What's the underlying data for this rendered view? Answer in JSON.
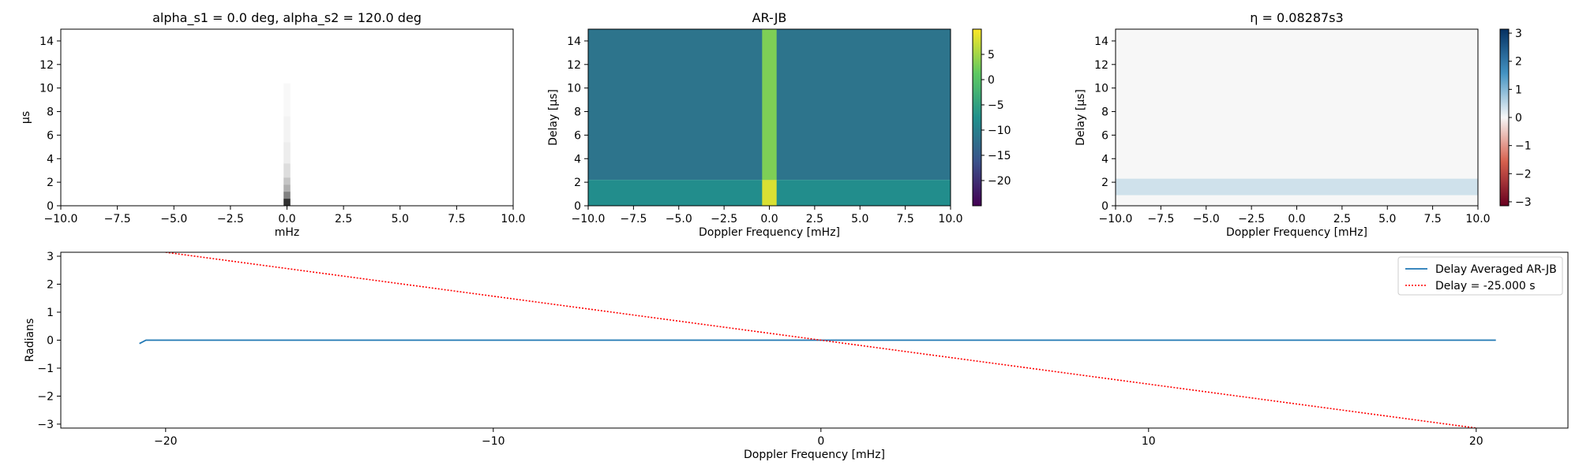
{
  "chart_data": [
    {
      "type": "heatmap",
      "title": "alpha_s1 = 0.0 deg, alpha_s2 = 120.0 deg",
      "xlabel": "mHz",
      "ylabel": "µs",
      "xlim": [
        -10,
        10
      ],
      "ylim": [
        0,
        15
      ],
      "x_ticks": [
        -10.0,
        -7.5,
        -5.0,
        -2.5,
        0.0,
        2.5,
        5.0,
        7.5,
        10.0
      ],
      "x_tick_labels": [
        "−10.0",
        "−7.5",
        "−5.0",
        "−2.5",
        "0.0",
        "2.5",
        "5.0",
        "7.5",
        "10.0"
      ],
      "y_ticks": [
        0,
        2,
        4,
        6,
        8,
        10,
        12,
        14
      ],
      "y_tick_labels": [
        "0",
        "2",
        "4",
        "6",
        "8",
        "10",
        "12",
        "14"
      ],
      "colormap": "greys",
      "cells": [
        {
          "x": 0.0,
          "y": 0.3,
          "value": 0.9
        },
        {
          "x": 0.0,
          "y": 0.9,
          "value": 0.55
        },
        {
          "x": 0.0,
          "y": 1.5,
          "value": 0.35
        },
        {
          "x": 0.0,
          "y": 2.1,
          "value": 0.25
        },
        {
          "x": 0.0,
          "y": 3.0,
          "value": 0.15
        },
        {
          "x": 0.0,
          "y": 4.5,
          "value": 0.08
        },
        {
          "x": 0.0,
          "y": 6.5,
          "value": 0.05
        },
        {
          "x": 0.0,
          "y": 9.0,
          "value": 0.03
        }
      ]
    },
    {
      "type": "heatmap",
      "title": "AR-JB",
      "xlabel": "Doppler Frequency [mHz]",
      "ylabel": "Delay [µs]",
      "xlim": [
        -10,
        10
      ],
      "ylim": [
        0,
        15
      ],
      "x_ticks": [
        -10.0,
        -7.5,
        -5.0,
        -2.5,
        0.0,
        2.5,
        5.0,
        7.5,
        10.0
      ],
      "x_tick_labels": [
        "−10.0",
        "−7.5",
        "−5.0",
        "−2.5",
        "0.0",
        "2.5",
        "5.0",
        "7.5",
        "10.0"
      ],
      "y_ticks": [
        0,
        2,
        4,
        6,
        8,
        10,
        12,
        14
      ],
      "y_tick_labels": [
        "0",
        "2",
        "4",
        "6",
        "8",
        "10",
        "12",
        "14"
      ],
      "colormap": "viridis",
      "colorbar": {
        "min": -25,
        "max": 10,
        "ticks": [
          5,
          0,
          -5,
          -10,
          -15,
          -20
        ],
        "tick_labels": [
          "5",
          "0",
          "−5",
          "−10",
          "−15",
          "−20"
        ]
      },
      "regions": [
        {
          "x_range": [
            -10,
            10
          ],
          "y_range": [
            2.2,
            15
          ],
          "value": -11.5
        },
        {
          "x_range": [
            -10,
            10
          ],
          "y_range": [
            0,
            2.2
          ],
          "value": -8
        },
        {
          "x_range": [
            -0.4,
            0.4
          ],
          "y_range": [
            2.2,
            15
          ],
          "value": 3
        },
        {
          "x_range": [
            -0.4,
            0.4
          ],
          "y_range": [
            0,
            2.2
          ],
          "value": 8
        }
      ]
    },
    {
      "type": "heatmap",
      "title": "η = 0.08287s3",
      "xlabel": "Doppler Frequency [mHz]",
      "ylabel": "Delay [µs]",
      "xlim": [
        -10,
        10
      ],
      "ylim": [
        0,
        15
      ],
      "x_ticks": [
        -10.0,
        -7.5,
        -5.0,
        -2.5,
        0.0,
        2.5,
        5.0,
        7.5,
        10.0
      ],
      "x_tick_labels": [
        "−10.0",
        "−7.5",
        "−5.0",
        "−2.5",
        "0.0",
        "2.5",
        "5.0",
        "7.5",
        "10.0"
      ],
      "y_ticks": [
        0,
        2,
        4,
        6,
        8,
        10,
        12,
        14
      ],
      "y_tick_labels": [
        "0",
        "2",
        "4",
        "6",
        "8",
        "10",
        "12",
        "14"
      ],
      "colormap": "RdBu",
      "colorbar": {
        "min": -3.14159,
        "max": 3.14159,
        "ticks": [
          3,
          2,
          1,
          0,
          -1,
          -2,
          -3
        ],
        "tick_labels": [
          "3",
          "2",
          "1",
          "0",
          "−1",
          "−2",
          "−3"
        ]
      },
      "regions": [
        {
          "x_range": [
            -10,
            10
          ],
          "y_range": [
            0,
            15
          ],
          "value": 0
        },
        {
          "x_range": [
            -10,
            10
          ],
          "y_range": [
            0.9,
            2.3
          ],
          "value": 0.35
        }
      ]
    },
    {
      "type": "line",
      "title": "",
      "xlabel": "Doppler Frequency [mHz]",
      "ylabel": "Radians",
      "xlim": [
        -23.2,
        22.8
      ],
      "ylim": [
        -3.14159,
        3.14159
      ],
      "x_ticks": [
        -20,
        -10,
        0,
        10,
        20
      ],
      "x_tick_labels": [
        "−20",
        "−10",
        "0",
        "10",
        "20"
      ],
      "y_ticks": [
        3,
        2,
        1,
        0,
        -1,
        -2,
        -3
      ],
      "y_tick_labels": [
        "3",
        "2",
        "1",
        "0",
        "−1",
        "−2",
        "−3"
      ],
      "legend_position": "top-right",
      "series": [
        {
          "name": "Delay Averaged  AR-JB",
          "color": "#1f77b4",
          "style": "solid",
          "x": [
            -20.8,
            -20.6,
            20.6
          ],
          "y": [
            -0.12,
            0.0,
            0.0
          ]
        },
        {
          "name": "Delay = -25.000 s",
          "color": "#ff0000",
          "style": "dotted",
          "x": [
            -20.0,
            20.0
          ],
          "y": [
            3.14159,
            -3.14159
          ]
        }
      ]
    }
  ]
}
